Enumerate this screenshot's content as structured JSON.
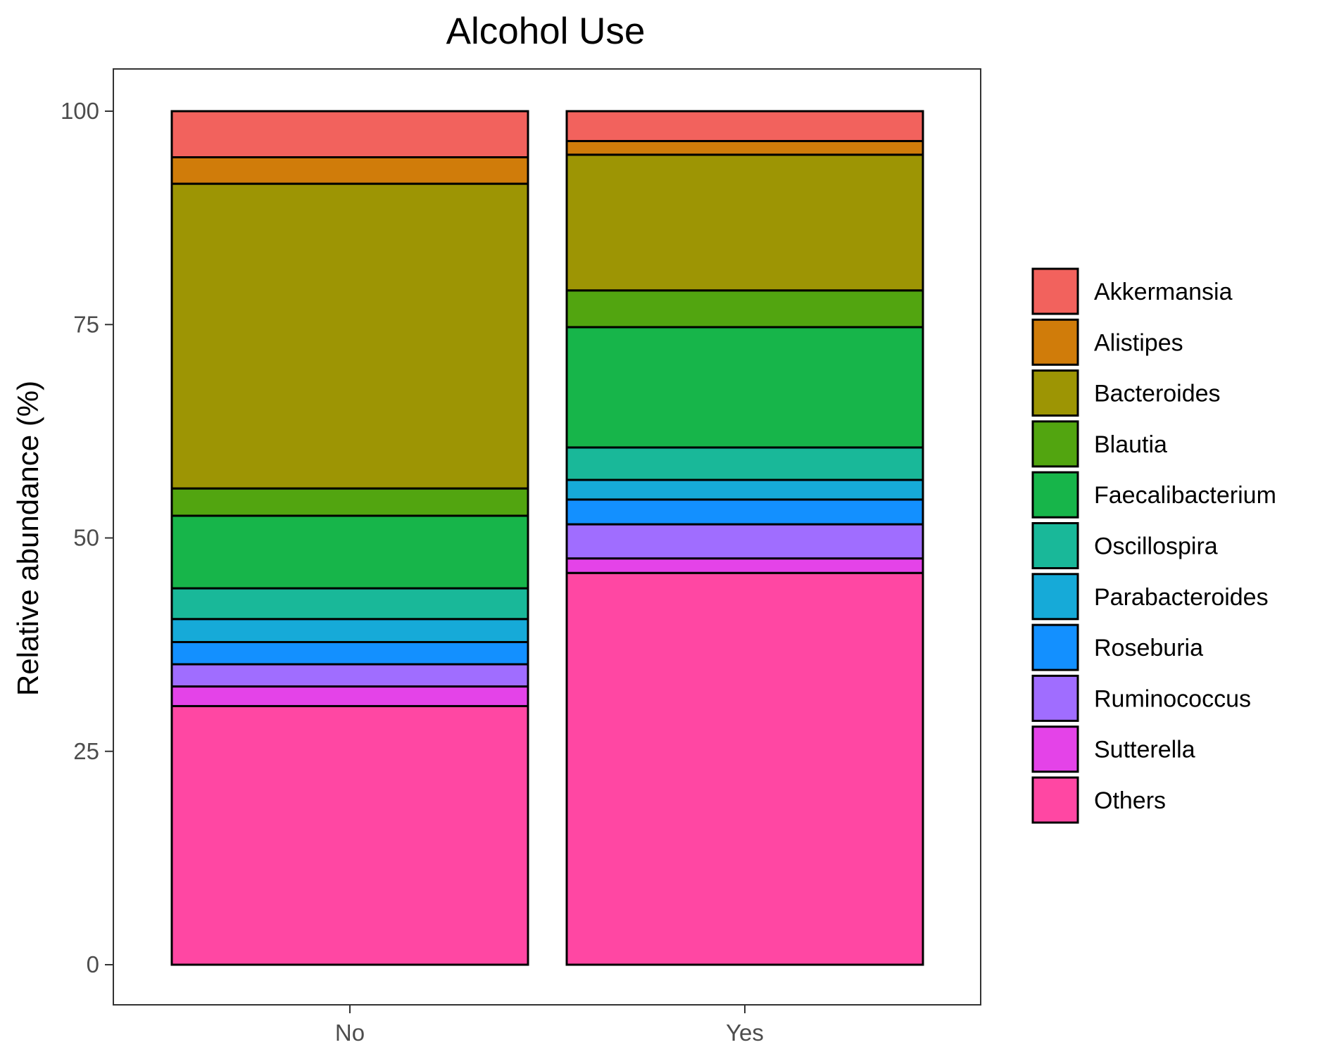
{
  "chart_data": {
    "type": "bar",
    "stacked": true,
    "title": "Alcohol Use",
    "xlabel": "",
    "ylabel": "Relative abundance (%)",
    "ylim": [
      -5,
      105
    ],
    "yticks": [
      0,
      25,
      50,
      75,
      100
    ],
    "grid": false,
    "legend_position": "right",
    "categories": [
      "No",
      "Yes"
    ],
    "series": [
      {
        "name": "Others",
        "color": "#FF47A3",
        "values": [
          30.3,
          45.9
        ]
      },
      {
        "name": "Sutterella",
        "color": "#E443E8",
        "values": [
          2.3,
          1.7
        ]
      },
      {
        "name": "Ruminococcus",
        "color": "#A06DFF",
        "values": [
          2.6,
          4.0
        ]
      },
      {
        "name": "Roseburia",
        "color": "#1390FF",
        "values": [
          2.6,
          2.9
        ]
      },
      {
        "name": "Parabacteroides",
        "color": "#16AAD8",
        "values": [
          2.7,
          2.3
        ]
      },
      {
        "name": "Oscillospira",
        "color": "#19B899",
        "values": [
          3.6,
          3.8
        ]
      },
      {
        "name": "Faecalibacterium",
        "color": "#17B54A",
        "values": [
          8.5,
          14.1
        ]
      },
      {
        "name": "Blautia",
        "color": "#52A510",
        "values": [
          3.2,
          4.3
        ]
      },
      {
        "name": "Bacteroides",
        "color": "#9D9504",
        "values": [
          35.7,
          15.9
        ]
      },
      {
        "name": "Alistipes",
        "color": "#D07C0A",
        "values": [
          3.1,
          1.6
        ]
      },
      {
        "name": "Akkermansia",
        "color": "#F2625D",
        "values": [
          5.4,
          3.5
        ]
      }
    ],
    "legend_order": [
      "Akkermansia",
      "Alistipes",
      "Bacteroides",
      "Blautia",
      "Faecalibacterium",
      "Oscillospira",
      "Parabacteroides",
      "Roseburia",
      "Ruminococcus",
      "Sutterella",
      "Others"
    ]
  }
}
